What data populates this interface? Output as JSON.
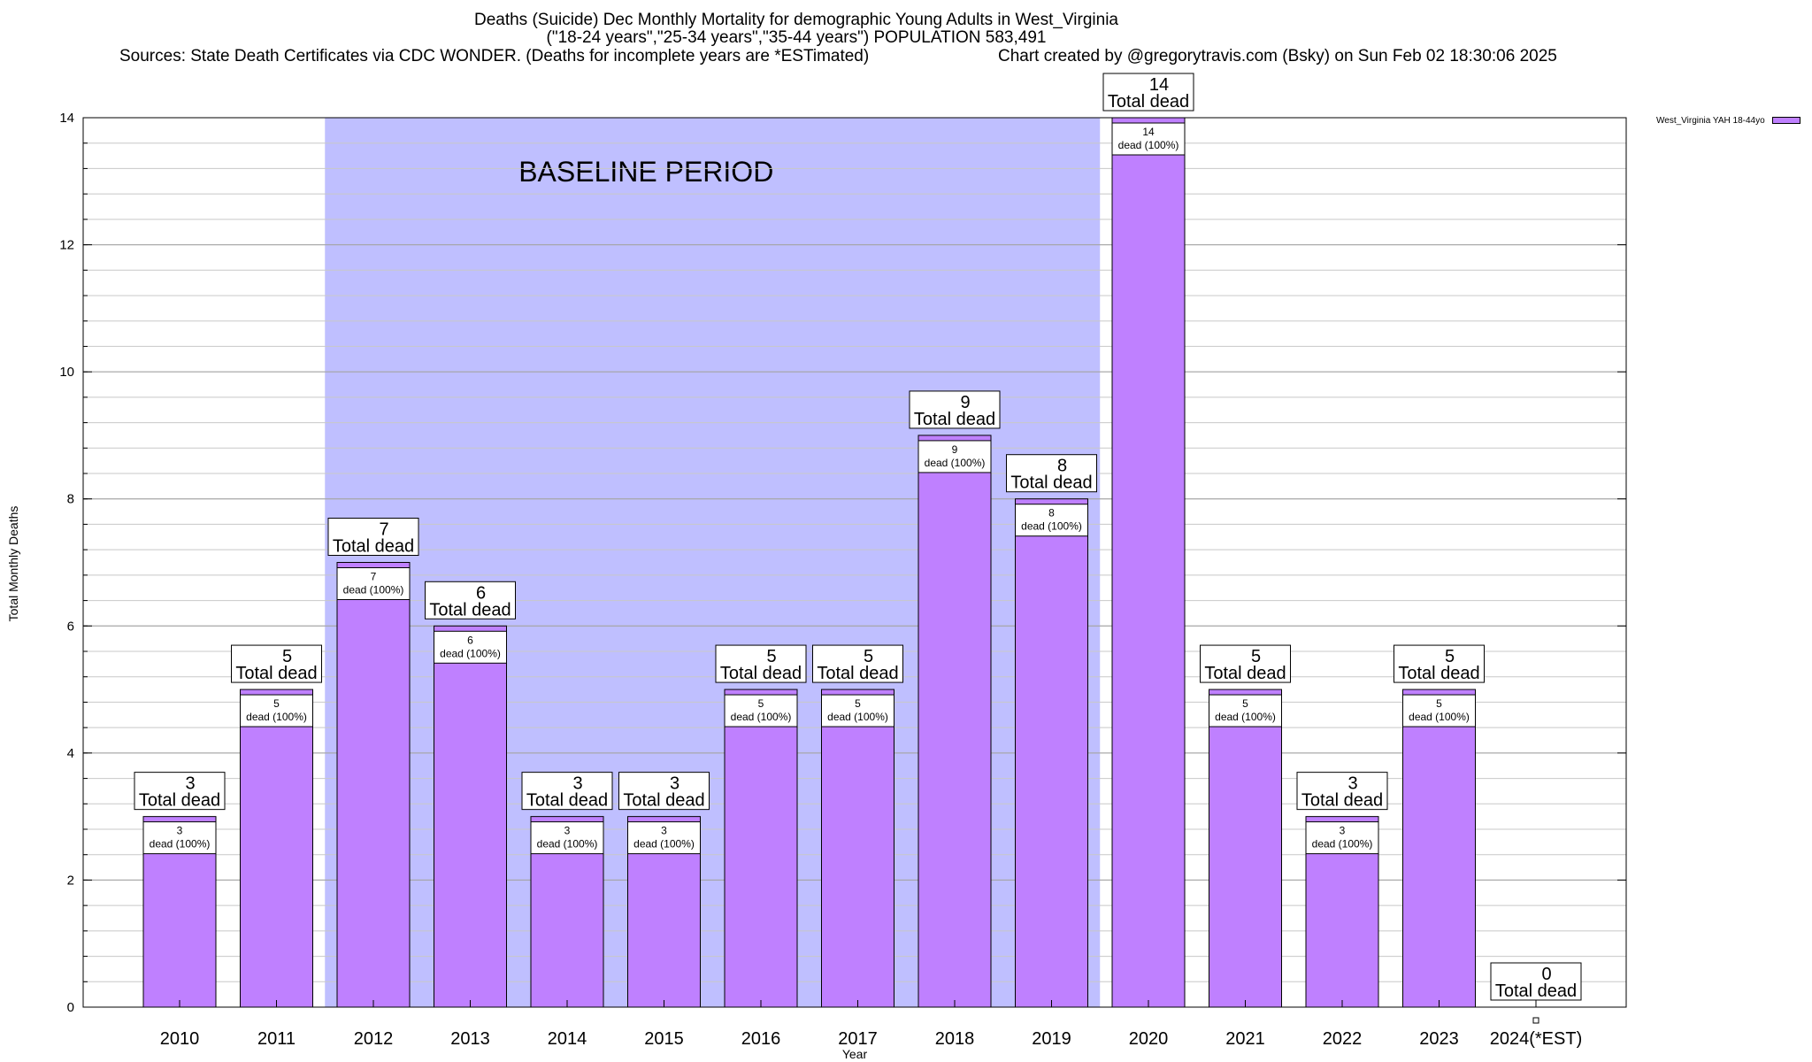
{
  "chart_data": {
    "type": "bar",
    "title_lines": [
      "Deaths (Suicide) Dec Monthly Mortality for demographic Young Adults in West_Virginia",
      "(\"18-24 years\",\"25-34 years\",\"35-44 years\") POPULATION 583,491",
      "Sources: State Death Certificates via CDC WONDER. (Deaths for incomplete years are *ESTimated)",
      "Chart created by @gregorytravis.com (Bsky) on Sun Feb 02 18:30:06 2025"
    ],
    "xlabel": "Year",
    "ylabel": "Total Monthly Deaths",
    "ylim": [
      0,
      14
    ],
    "yticks": [
      0,
      2,
      4,
      6,
      8,
      10,
      12,
      14
    ],
    "grid": true,
    "categories": [
      "2010",
      "2011",
      "2012",
      "2013",
      "2014",
      "2015",
      "2016",
      "2017",
      "2018",
      "2019",
      "2020",
      "2021",
      "2022",
      "2023",
      "2024(*EST)"
    ],
    "series": [
      {
        "name": "West_Virginia YAH 18-44yo",
        "color": "#bf80ff",
        "values": [
          3,
          5,
          7,
          6,
          3,
          3,
          5,
          5,
          9,
          8,
          14,
          5,
          3,
          5,
          0
        ]
      }
    ],
    "total_label_suffix": "Total dead",
    "inner_label_suffix": "dead (100%)",
    "baseline": {
      "label": "BASELINE PERIOD",
      "from": "2012",
      "to": "2019",
      "color": "#bfbfff"
    },
    "legend_position": "top-right"
  }
}
